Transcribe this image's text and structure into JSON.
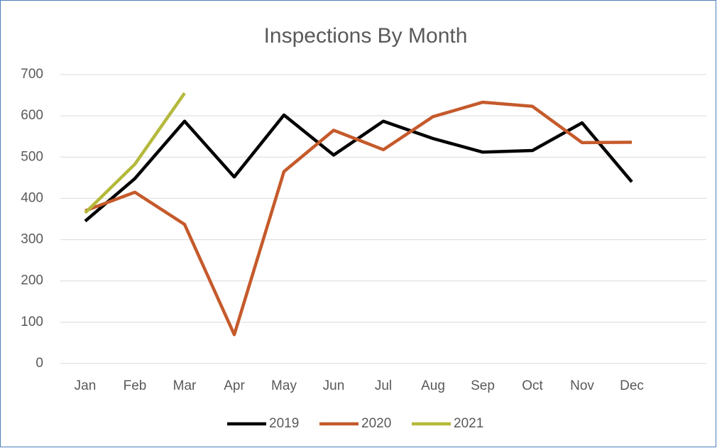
{
  "chart_data": {
    "type": "line",
    "title": "Inspections By Month",
    "categories": [
      "Jan",
      "Feb",
      "Mar",
      "Apr",
      "May",
      "Jun",
      "Jul",
      "Aug",
      "Sep",
      "Oct",
      "Nov",
      "Dec",
      null
    ],
    "series": [
      {
        "name": "2019",
        "color": "#000000",
        "values": [
          345,
          448,
          587,
          452,
          602,
          505,
          587,
          545,
          512,
          516,
          583,
          440,
          null
        ]
      },
      {
        "name": "2020",
        "color": "#c55a2b",
        "values": [
          370,
          415,
          337,
          70,
          465,
          565,
          518,
          598,
          633,
          623,
          535,
          536,
          null
        ]
      },
      {
        "name": "2021",
        "color": "#b5b93c",
        "values": [
          365,
          483,
          655,
          null,
          null,
          null,
          null,
          null,
          null,
          null,
          null,
          null,
          null
        ]
      }
    ],
    "ylim": [
      0,
      700
    ],
    "yticks": [
      0,
      100,
      200,
      300,
      400,
      500,
      600,
      700
    ],
    "grid": true,
    "legend": "bottom"
  }
}
